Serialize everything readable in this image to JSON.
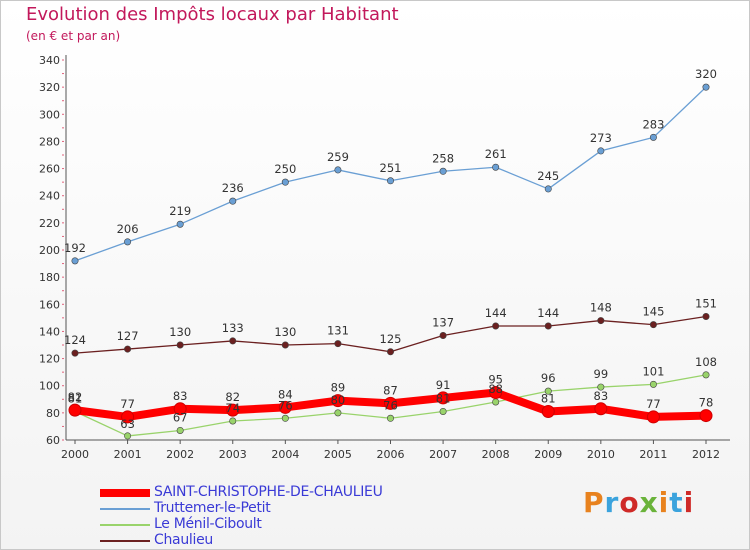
{
  "header": {
    "title": "Evolution des Impôts locaux par Habitant",
    "subtitle": "(en € et par an)"
  },
  "logo": {
    "text": "Proxiti",
    "colors": [
      "#e8821e",
      "#3ba3dd",
      "#cf2a27",
      "#6ab33a",
      "#e8821e",
      "#3ba3dd",
      "#cf2a27"
    ]
  },
  "chart_data": {
    "type": "line",
    "x": [
      "2000",
      "2001",
      "2002",
      "2003",
      "2004",
      "2005",
      "2006",
      "2007",
      "2008",
      "2009",
      "2010",
      "2011",
      "2012"
    ],
    "ylim": [
      60,
      340
    ],
    "yticks": [
      60,
      80,
      100,
      120,
      140,
      160,
      180,
      200,
      220,
      240,
      260,
      280,
      300,
      320,
      340
    ],
    "grid": false,
    "legend_position": "bottom-left",
    "series": [
      {
        "name": "SAINT-CHRISTOPHE-DE-CHAULIEU",
        "color": "#ff0000",
        "values": [
          82,
          77,
          83,
          82,
          84,
          89,
          87,
          91,
          95,
          81,
          83,
          77,
          78
        ]
      },
      {
        "name": "Truttemer-le-Petit",
        "color": "#6a9fd4",
        "values": [
          192,
          206,
          219,
          236,
          250,
          259,
          251,
          258,
          261,
          245,
          273,
          283,
          320
        ]
      },
      {
        "name": "Le Ménil-Ciboult",
        "color": "#99d36b",
        "values": [
          81,
          63,
          67,
          74,
          76,
          80,
          76,
          81,
          88,
          96,
          99,
          101,
          108
        ]
      },
      {
        "name": "Chaulieu",
        "color": "#6b2020",
        "values": [
          124,
          127,
          130,
          133,
          130,
          131,
          125,
          137,
          144,
          144,
          148,
          145,
          151
        ]
      }
    ]
  }
}
